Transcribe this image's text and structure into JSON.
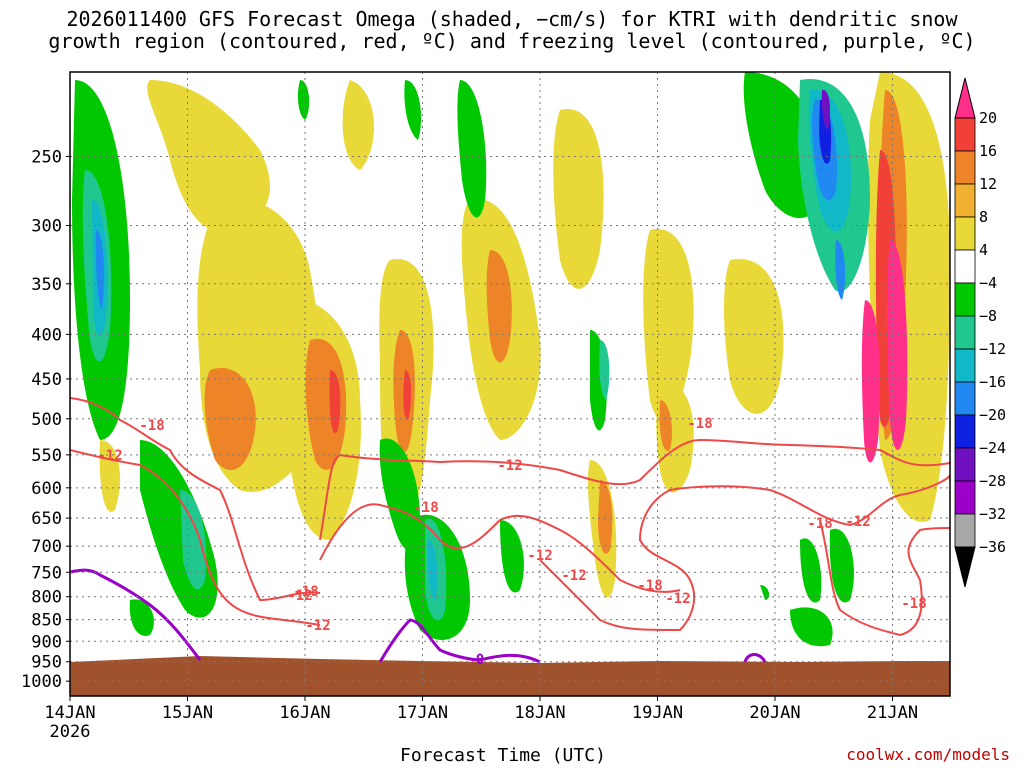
{
  "title_line1": "2026011400 GFS Forecast Omega (shaded, −cm/s) for KTRI with dendritic snow",
  "title_line2": "growth region (contoured, red, ºC) and freezing level (contoured, purple, ºC)",
  "credit": "coolwx.com/models",
  "chart_data": {
    "type": "heatmap",
    "title": "2026011400 GFS Forecast Omega (shaded, −cm/s) for KTRI with dendritic snow growth region (contoured, red, ºC) and freezing level (contoured, purple, ºC)",
    "xlabel": "Forecast Time (UTC)",
    "ylabel": "",
    "y_axis": {
      "scale": "log-pressure (hPa)",
      "inverted": true,
      "ticks": [
        250,
        300,
        350,
        400,
        450,
        500,
        550,
        600,
        650,
        700,
        750,
        800,
        850,
        900,
        950,
        1000
      ],
      "ylim": [
        1000,
        200
      ]
    },
    "x_axis": {
      "ticks": [
        "14JAN",
        "15JAN",
        "16JAN",
        "17JAN",
        "18JAN",
        "19JAN",
        "20JAN",
        "21JAN"
      ],
      "year_label": "2026",
      "grid": true
    },
    "colorbar": {
      "labels": [
        "20",
        "16",
        "12",
        "8",
        "4",
        "−4",
        "−8",
        "−12",
        "−16",
        "−20",
        "−24",
        "−28",
        "−32",
        "−36"
      ],
      "colors": [
        "#ff2f8a",
        "#f04038",
        "#ee8428",
        "#f0b030",
        "#e8d838",
        "#ffffff",
        "#00c800",
        "#20c890",
        "#10b8c8",
        "#2088f0",
        "#1020e0",
        "#7010c0",
        "#9a00c8",
        "#a8a8a8",
        "#000000"
      ]
    },
    "contour_labels": {
      "dgz_red": [
        "-18",
        "-12",
        "-18",
        "-12",
        "-18",
        "-12",
        "-18",
        "-12",
        "-18",
        "-12",
        "-18",
        "-12",
        "-18",
        "-12",
        "-12"
      ],
      "freezing_purple": [
        "0"
      ]
    },
    "ground_color": "#a0522d",
    "grid": true
  }
}
